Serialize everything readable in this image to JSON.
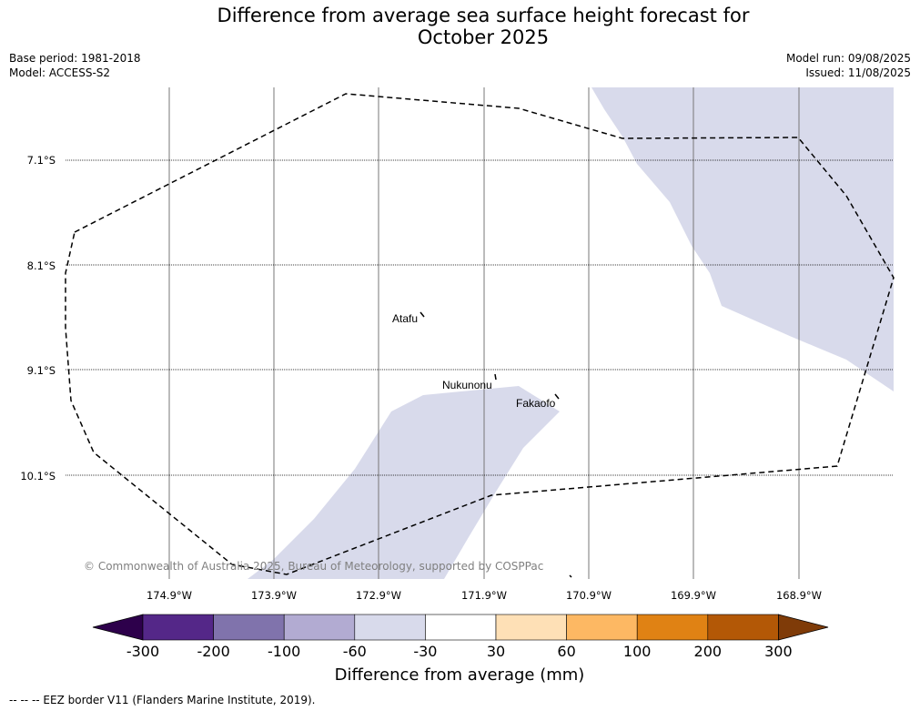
{
  "title_line1": "Difference from average sea surface height forecast for",
  "title_line2": "October 2025",
  "meta_left": {
    "base_period": "Base period: 1981-2018",
    "model": "Model: ACCESS-S2"
  },
  "meta_right": {
    "model_run": "Model run: 09/08/2025",
    "issued": "Issued: 11/08/2025"
  },
  "map": {
    "lat_labels": [
      "7.1°S",
      "8.1°S",
      "9.1°S",
      "10.1°S"
    ],
    "lon_labels": [
      "174.9°W",
      "173.9°W",
      "172.9°W",
      "171.9°W",
      "170.9°W",
      "169.9°W",
      "168.9°W"
    ],
    "places": [
      "Atafu",
      "Nukunonu",
      "Fakaofo"
    ],
    "copyright": "© Commonwealth of Australia 2025, Bureau of Meteorology, supported by COSPPac",
    "shading_category": "-60 to -30"
  },
  "colorbar": {
    "label": "Difference from average (mm)",
    "ticks": [
      "-300",
      "-200",
      "-100",
      "-60",
      "-30",
      "30",
      "60",
      "100",
      "200",
      "300"
    ],
    "colors": [
      "#2d004b",
      "#542788",
      "#8073ac",
      "#b2abd2",
      "#d8daeb",
      "#ffffff",
      "#fee0b6",
      "#fdb863",
      "#e08214",
      "#b35806",
      "#7f3b08"
    ]
  },
  "legend_caption": "--  --  -- EEZ border V11 (Flanders Marine Institute, 2019)."
}
